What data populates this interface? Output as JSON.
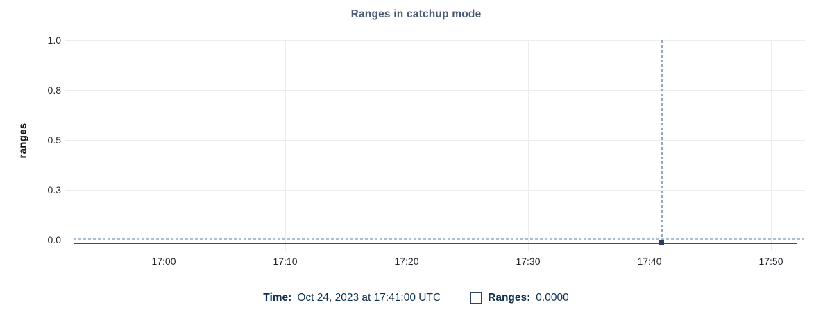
{
  "title": "Ranges in catchup mode",
  "tooltip_legend": {
    "time_label": "Time:",
    "time_value": "Oct 24, 2023 at 17:41:00 UTC",
    "series_checkbox_checked": false,
    "series_label": "Ranges:",
    "series_value": "0.0000"
  },
  "chart_data": {
    "type": "line",
    "title": "Ranges in catchup mode",
    "xlabel": "",
    "ylabel": "ranges",
    "ylim": [
      0,
      1
    ],
    "grid": true,
    "legend_position": "bottom",
    "x_ticks": [
      "17:00",
      "17:10",
      "17:20",
      "17:30",
      "17:40",
      "17:50"
    ],
    "y_ticks": [
      {
        "value": 1.0,
        "label": "1.0"
      },
      {
        "value": 0.75,
        "label": "0.8"
      },
      {
        "value": 0.5,
        "label": "0.5"
      },
      {
        "value": 0.25,
        "label": "0.3"
      },
      {
        "value": 0.0,
        "label": "0.0"
      }
    ],
    "series": [
      {
        "name": "Ranges",
        "style": "dashed",
        "x": [
          "16:52:30",
          "17:52:00"
        ],
        "y": [
          0,
          0
        ]
      }
    ],
    "crosshair": {
      "time": "17:41:00",
      "value": 0.0
    }
  },
  "colors": {
    "title": "#4c5b75",
    "title_underline": "#9aaabf",
    "grid": "#ececec",
    "tick_text": "#22262c",
    "series_dashed": "#a9c0d2",
    "baseline": "#3e4e68",
    "crosshair": "#93a7ba",
    "dot": "#2e3e5a",
    "legend_text": "#0f3150"
  }
}
